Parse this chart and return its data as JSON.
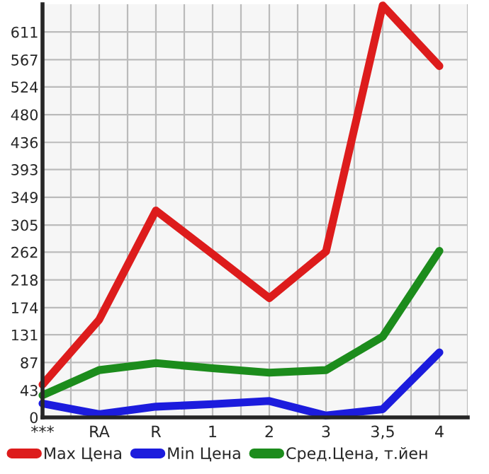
{
  "chart_data": {
    "type": "line",
    "categories": [
      "***",
      "RA",
      "R",
      "1",
      "2",
      "3",
      "3,5",
      "4"
    ],
    "series": [
      {
        "name": "Max Цена",
        "color": "#dd1c1c",
        "values": [
          52,
          155,
          328,
          259,
          189,
          263,
          653,
          557
        ]
      },
      {
        "name": "Min Цена",
        "color": "#1c1cdd",
        "values": [
          22,
          5,
          17,
          21,
          26,
          3,
          13,
          103
        ]
      },
      {
        "name": "Сред.Цена, т.йен",
        "color": "#1c8c1c",
        "values": [
          35,
          75,
          86,
          78,
          71,
          75,
          128,
          264
        ]
      }
    ],
    "ylim": [
      0,
      655
    ],
    "yticks": [
      0,
      43,
      87,
      131,
      174,
      218,
      262,
      305,
      349,
      393,
      436,
      480,
      524,
      567,
      611
    ],
    "grid": true,
    "legend": "bottom",
    "marker": "none",
    "line_style": "solid"
  }
}
